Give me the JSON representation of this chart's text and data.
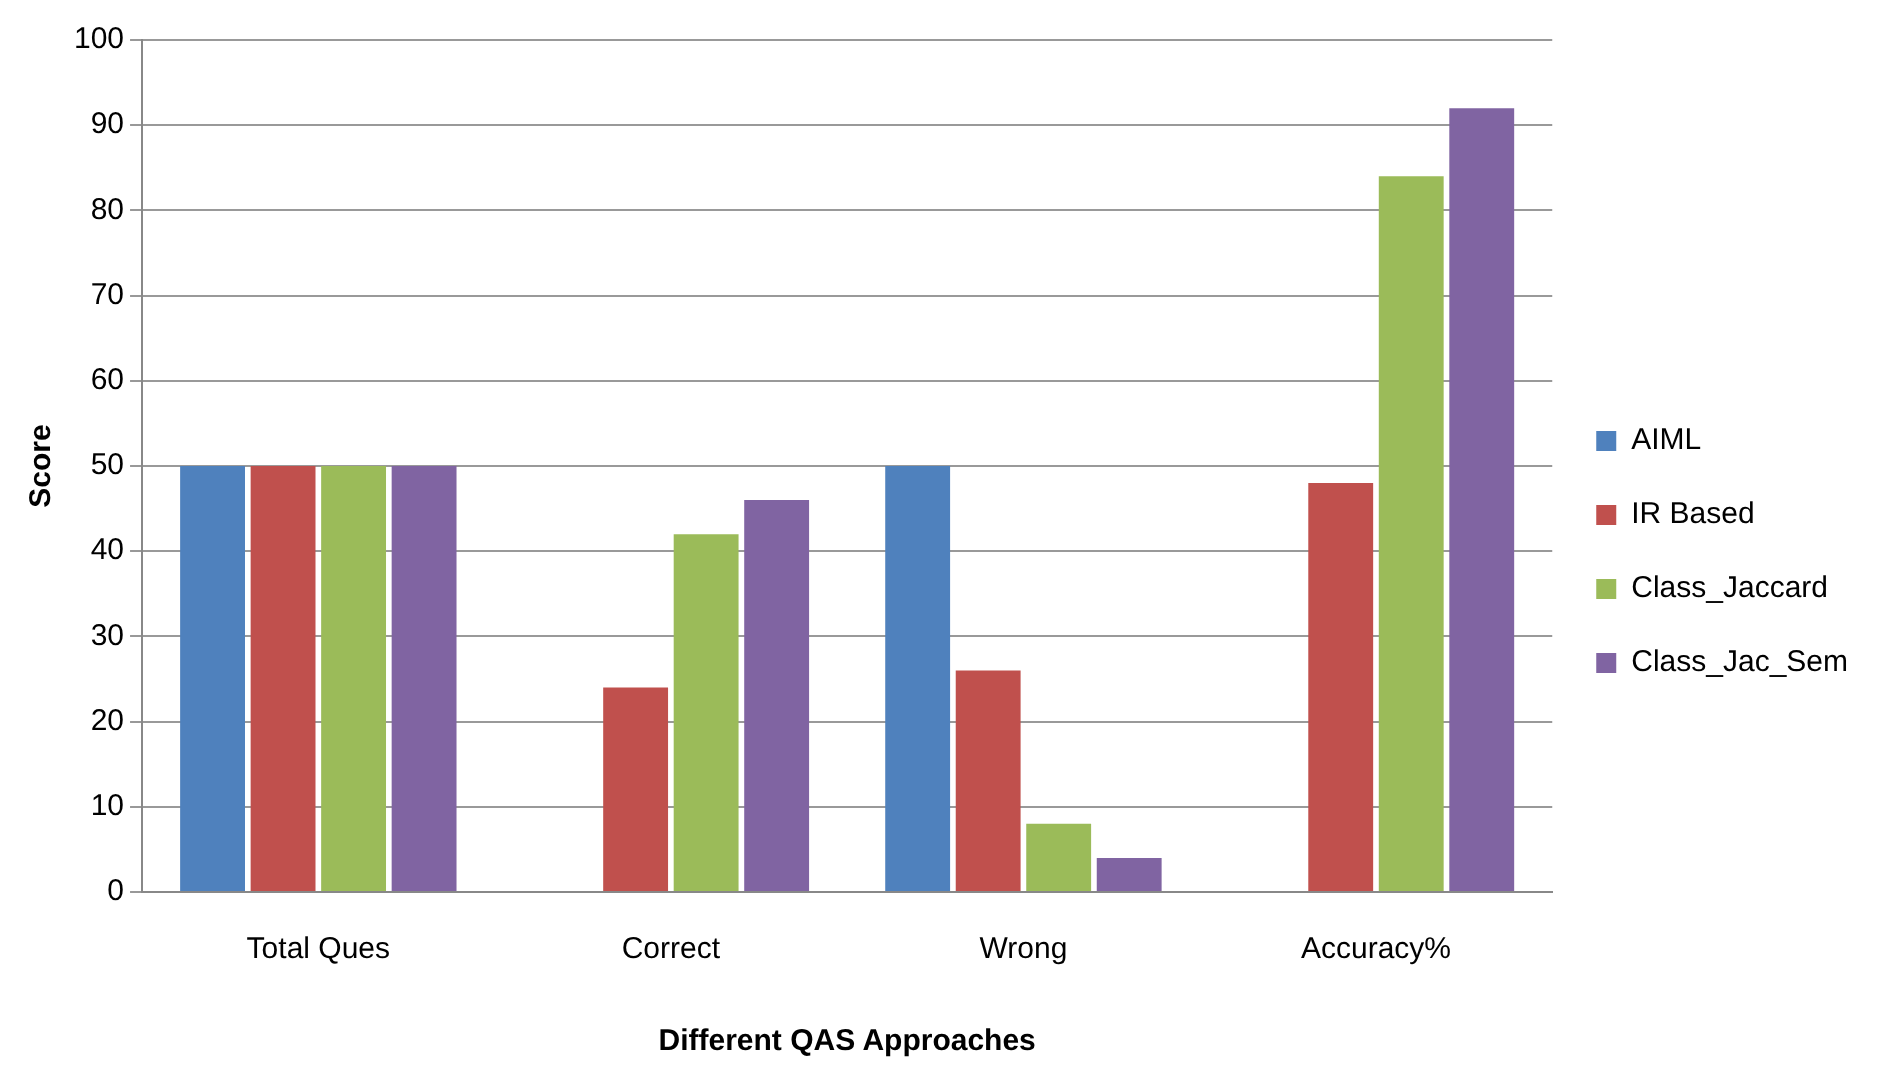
{
  "chart_data": {
    "type": "bar",
    "xlabel": "Different QAS Approaches",
    "ylabel": "Score",
    "categories": [
      "Total Ques",
      "Correct",
      "Wrong",
      "Accuracy%"
    ],
    "series": [
      {
        "name": "AIML",
        "color": "#4f81bd",
        "values": [
          50,
          0,
          50,
          0
        ]
      },
      {
        "name": "IR Based",
        "color": "#c0504d",
        "values": [
          50,
          24,
          26,
          48
        ]
      },
      {
        "name": "Class_Jaccard",
        "color": "#9bbb59",
        "values": [
          50,
          42,
          8,
          84
        ]
      },
      {
        "name": "Class_Jac_Sem",
        "color": "#8064a2",
        "values": [
          50,
          46,
          4,
          92
        ]
      }
    ],
    "ylim": [
      0,
      100
    ],
    "yticks": [
      0,
      10,
      20,
      30,
      40,
      50,
      60,
      70,
      80,
      90,
      100
    ],
    "grid": "y",
    "legend": "right"
  }
}
